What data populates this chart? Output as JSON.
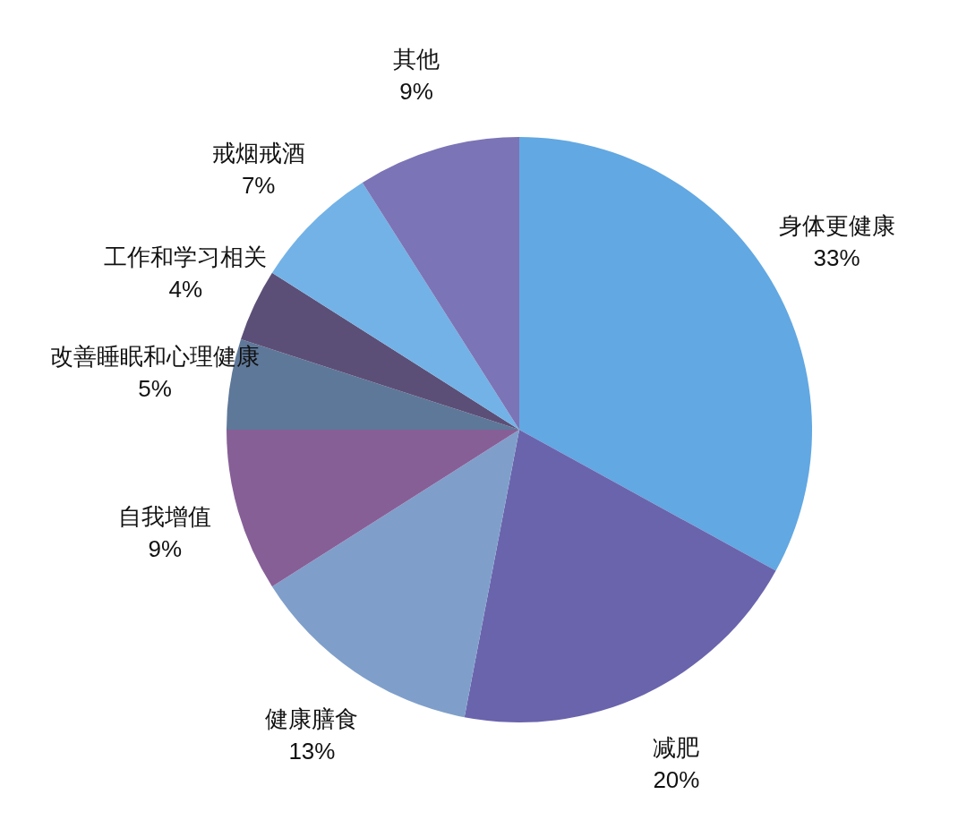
{
  "chart_data": {
    "type": "pie",
    "categories": [
      "身体更健康",
      "减肥",
      "健康膳食",
      "自我增值",
      "改善睡眠和心理健康",
      "工作和学习相关",
      "戒烟戒酒",
      "其他"
    ],
    "values": [
      33,
      20,
      13,
      9,
      5,
      4,
      7,
      9
    ],
    "colors": [
      "#62a8e2",
      "#6a64ad",
      "#7f9fca",
      "#875f97",
      "#5e7899",
      "#5c4f77",
      "#73b2e6",
      "#7b74b6"
    ],
    "value_labels": [
      "33%",
      "20%",
      "13%",
      "9%",
      "5%",
      "4%",
      "7%",
      "9%"
    ]
  }
}
